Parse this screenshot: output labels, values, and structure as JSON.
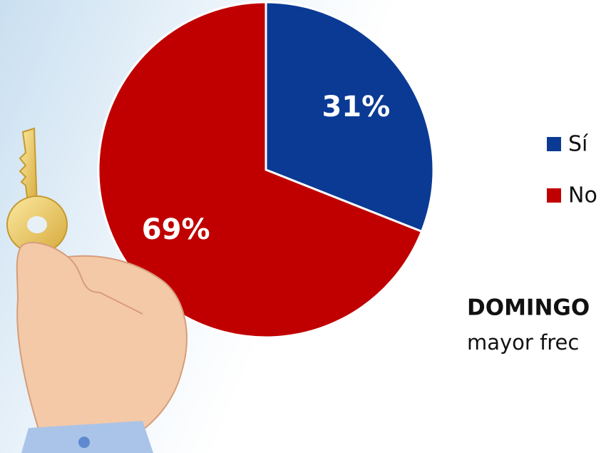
{
  "chart_data": {
    "type": "pie",
    "categories": [
      "Sí",
      "No"
    ],
    "values": [
      31,
      69
    ],
    "value_labels": [
      "31%",
      "69%"
    ],
    "colors": [
      "#0a3a94",
      "#c00000"
    ],
    "annotations": [
      "DOMINGO",
      "mayor frec"
    ]
  }
}
